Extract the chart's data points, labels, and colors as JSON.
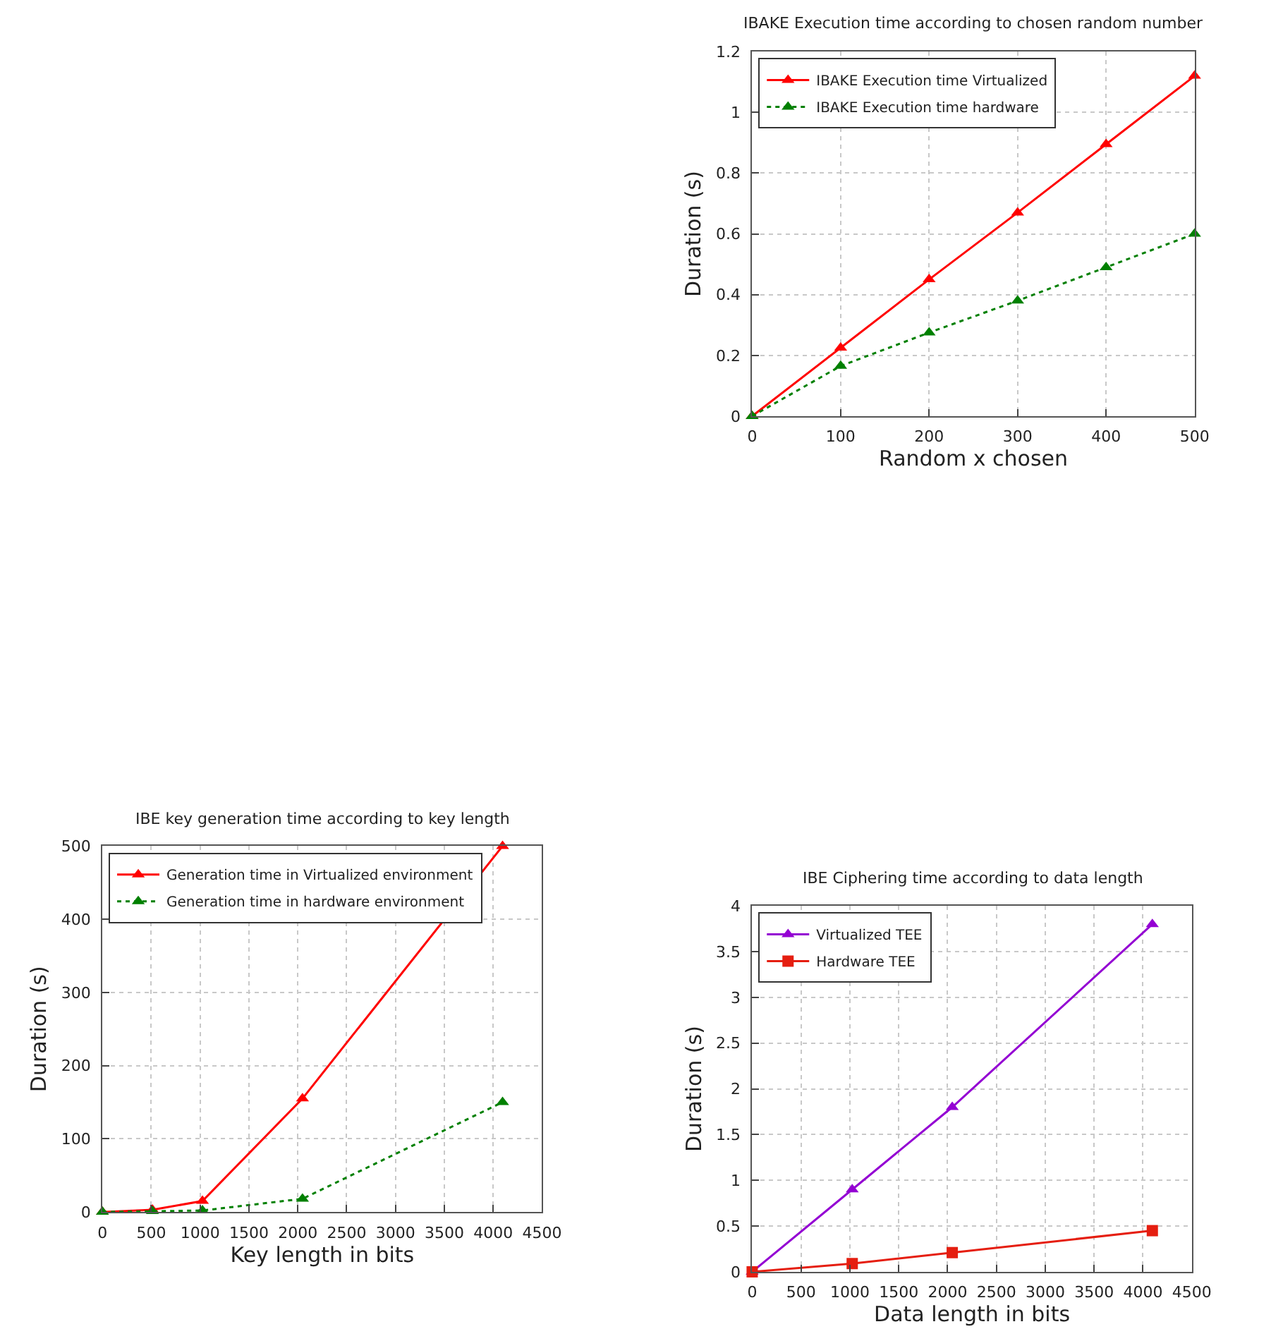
{
  "chart_data": [
    {
      "type": "line",
      "title": "IBAKE Execution time according to chosen random number",
      "xlabel": "Random x chosen",
      "ylabel": "Duration (s)",
      "x": [
        0,
        100,
        200,
        300,
        400,
        500
      ],
      "xlim": [
        0,
        500
      ],
      "xticks": [
        0,
        100,
        200,
        300,
        400,
        500
      ],
      "ylim": [
        0,
        1.2
      ],
      "yticks": [
        0,
        0.2,
        0.4,
        0.6,
        0.8,
        1,
        1.2
      ],
      "grid": true,
      "legend": "top left",
      "marker": "triangle",
      "series": [
        {
          "name": "IBAKE Execution time Virtualized",
          "color": "#ff0000",
          "values": [
            0,
            0.225,
            0.45,
            0.67,
            0.895,
            1.12
          ],
          "line_style": "solid"
        },
        {
          "name": "IBAKE Execution time hardware",
          "color": "#008000",
          "values": [
            0,
            0.165,
            0.275,
            0.38,
            0.49,
            0.6
          ],
          "line_style": "dotted"
        }
      ]
    },
    {
      "type": "line",
      "title": "IBE key generation time according to key length",
      "xlabel": "Key length in bits",
      "ylabel": "Duration (s)",
      "x": [
        0,
        512,
        1024,
        2048,
        4096
      ],
      "xlim": [
        0,
        4500
      ],
      "xticks": [
        0,
        500,
        1000,
        1500,
        2000,
        2500,
        3000,
        3500,
        4000,
        4500
      ],
      "ylim": [
        0,
        500
      ],
      "yticks": [
        0,
        100,
        200,
        300,
        400,
        500
      ],
      "grid": true,
      "legend": "top left",
      "marker": "triangle",
      "series": [
        {
          "name": "Generation time in Virtualized environment",
          "color": "#ff0000",
          "values": [
            0,
            3,
            15,
            155,
            500
          ],
          "line_style": "solid"
        },
        {
          "name": "Generation time in hardware environment",
          "color": "#008000",
          "values": [
            0,
            1,
            2,
            18,
            150
          ],
          "line_style": "dotted"
        }
      ]
    },
    {
      "type": "line",
      "title": "IBE Ciphering time according to data length",
      "xlabel": "Data length in bits",
      "ylabel": "Duration (s)",
      "x": [
        0,
        1024,
        2048,
        4096
      ],
      "xlim": [
        0,
        4500
      ],
      "xticks": [
        0,
        500,
        1000,
        1500,
        2000,
        2500,
        3000,
        3500,
        4000,
        4500
      ],
      "ylim": [
        0,
        4
      ],
      "yticks": [
        0,
        0.5,
        1,
        1.5,
        2,
        2.5,
        3,
        3.5,
        4
      ],
      "grid": true,
      "legend": "top left",
      "series": [
        {
          "name": "Virtualized TEE",
          "color": "#9400d3",
          "values": [
            0,
            0.9,
            1.8,
            3.8
          ],
          "marker": "triangle",
          "line_style": "solid"
        },
        {
          "name": "Hardware TEE",
          "color": "#e51e10",
          "values": [
            0,
            0.09,
            0.21,
            0.45
          ],
          "marker": "square",
          "line_style": "solid"
        }
      ]
    }
  ]
}
